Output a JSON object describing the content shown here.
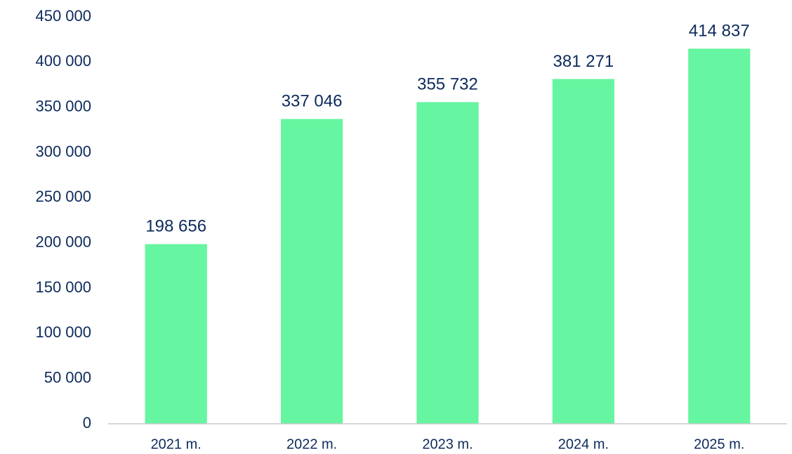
{
  "chart_data": {
    "type": "bar",
    "categories": [
      "2021 m.",
      "2022 m.",
      "2023 m.",
      "2024 m.",
      "2025 m."
    ],
    "values": [
      198656,
      337046,
      355732,
      381271,
      414837
    ],
    "value_labels": [
      "198 656",
      "337 046",
      "355 732",
      "381 271",
      "414 837"
    ],
    "color": "#66f5a0",
    "ylim": [
      0,
      450000
    ],
    "yticks": [
      0,
      {
        "value": 50000,
        "label": "50 000"
      },
      {
        "value": 100000,
        "label": "100 000"
      },
      {
        "value": 150000,
        "label": "150 000"
      },
      {
        "value": 200000,
        "label": "200 000"
      },
      {
        "value": 250000,
        "label": "250 000"
      },
      {
        "value": 300000,
        "label": "300 000"
      },
      {
        "value": 350000,
        "label": "350 000"
      },
      {
        "value": 400000,
        "label": "400 000"
      },
      {
        "value": 450000,
        "label": "450 000"
      }
    ],
    "grid": false
  }
}
